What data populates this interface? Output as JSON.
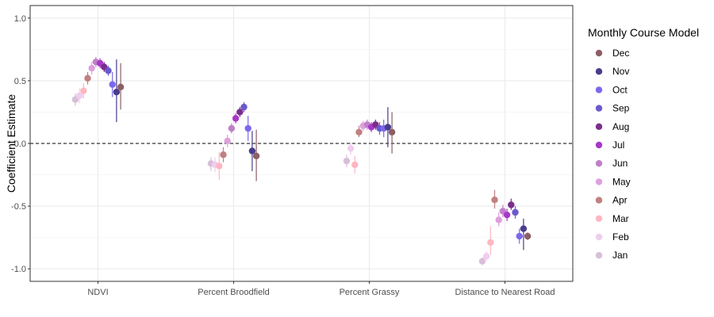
{
  "chart_data": {
    "type": "scatter",
    "subtype": "dodged point-range (coefficient plot)",
    "ylabel": "Coefficient Estimate",
    "xlabel": "",
    "ylim": [
      -1.1,
      1.1
    ],
    "yticks": [
      -1.0,
      -0.5,
      0.0,
      0.5,
      1.0
    ],
    "ytick_labels": [
      "-1.0",
      "-0.5",
      "0.0",
      "0.5",
      "1.0"
    ],
    "reference_line": {
      "y": 0,
      "style": "dashed"
    },
    "grid": true,
    "legend_position": "right",
    "legend_title": "Monthly Course Model",
    "categories": [
      "NDVI",
      "Percent Broodfield",
      "Percent Grassy",
      "Distance to Nearest Road"
    ],
    "series": [
      {
        "name": "Jan",
        "color": "#d8bfd8",
        "values": [
          0.35,
          -0.16,
          -0.14,
          -0.94
        ],
        "lower": [
          0.3,
          -0.22,
          -0.19,
          -0.97
        ],
        "upper": [
          0.4,
          -0.11,
          -0.09,
          -0.91
        ]
      },
      {
        "name": "Feb",
        "color": "#efcdef",
        "values": [
          0.38,
          -0.17,
          -0.04,
          -0.9
        ],
        "lower": [
          0.32,
          -0.23,
          -0.09,
          -0.94
        ],
        "upper": [
          0.44,
          -0.11,
          0.01,
          -0.86
        ]
      },
      {
        "name": "Mar",
        "color": "#ffb6c1",
        "values": [
          0.42,
          -0.18,
          -0.17,
          -0.79
        ],
        "lower": [
          0.36,
          -0.29,
          -0.24,
          -0.89
        ],
        "upper": [
          0.48,
          -0.07,
          -0.1,
          -0.66
        ]
      },
      {
        "name": "Apr",
        "color": "#c08081",
        "values": [
          0.52,
          -0.09,
          0.09,
          -0.45
        ],
        "lower": [
          0.47,
          -0.15,
          0.05,
          -0.52
        ],
        "upper": [
          0.57,
          -0.03,
          0.14,
          -0.37
        ]
      },
      {
        "name": "May",
        "color": "#dda0dd",
        "values": [
          0.6,
          0.02,
          0.14,
          -0.61
        ],
        "lower": [
          0.55,
          -0.03,
          0.1,
          -0.66
        ],
        "upper": [
          0.65,
          0.07,
          0.18,
          -0.55
        ]
      },
      {
        "name": "Jun",
        "color": "#c080c8",
        "values": [
          0.65,
          0.12,
          0.15,
          -0.54
        ],
        "lower": [
          0.61,
          0.08,
          0.11,
          -0.59
        ],
        "upper": [
          0.69,
          0.16,
          0.19,
          -0.49
        ]
      },
      {
        "name": "Jul",
        "color": "#a838c8",
        "values": [
          0.64,
          0.2,
          0.13,
          -0.57
        ],
        "lower": [
          0.6,
          0.16,
          0.09,
          -0.62
        ],
        "upper": [
          0.68,
          0.24,
          0.17,
          -0.52
        ]
      },
      {
        "name": "Aug",
        "color": "#7b2d8b",
        "values": [
          0.61,
          0.25,
          0.15,
          -0.49
        ],
        "lower": [
          0.57,
          0.21,
          0.11,
          -0.53
        ],
        "upper": [
          0.65,
          0.29,
          0.19,
          -0.44
        ]
      },
      {
        "name": "Sep",
        "color": "#6a5acd",
        "values": [
          0.58,
          0.29,
          0.12,
          -0.55
        ],
        "lower": [
          0.54,
          0.25,
          0.07,
          -0.6
        ],
        "upper": [
          0.62,
          0.33,
          0.17,
          -0.5
        ]
      },
      {
        "name": "Oct",
        "color": "#7b68ee",
        "values": [
          0.47,
          0.12,
          0.12,
          -0.74
        ],
        "lower": [
          0.37,
          0.02,
          0.05,
          -0.8
        ],
        "upper": [
          0.57,
          0.22,
          0.19,
          -0.68
        ]
      },
      {
        "name": "Nov",
        "color": "#483d8b",
        "values": [
          0.41,
          -0.06,
          0.13,
          -0.68
        ],
        "lower": [
          0.17,
          -0.22,
          -0.03,
          -0.85
        ],
        "upper": [
          0.67,
          0.1,
          0.29,
          -0.6
        ]
      },
      {
        "name": "Dec",
        "color": "#8b5f65",
        "values": [
          0.45,
          -0.1,
          0.09,
          -0.74
        ],
        "lower": [
          0.27,
          -0.3,
          -0.08,
          -0.77
        ],
        "upper": [
          0.64,
          0.11,
          0.25,
          -0.71
        ]
      }
    ],
    "legend_order": [
      "Dec",
      "Nov",
      "Oct",
      "Sep",
      "Aug",
      "Jul",
      "Jun",
      "May",
      "Apr",
      "Mar",
      "Feb",
      "Jan"
    ]
  }
}
